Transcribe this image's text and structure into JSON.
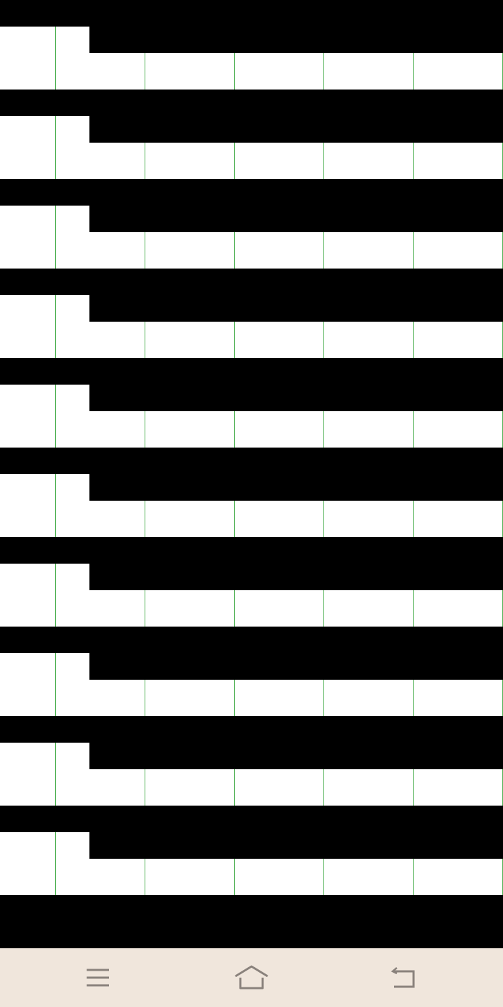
{
  "colors": {
    "background": "#000000",
    "cell": "#ffffff",
    "grid_line": "#4caf50",
    "navbar": "#f0e6dc",
    "nav_icon": "#8a827c"
  },
  "navbar": {
    "buttons": [
      {
        "icon": "menu-icon"
      },
      {
        "icon": "home-icon"
      },
      {
        "icon": "back-icon"
      }
    ]
  }
}
